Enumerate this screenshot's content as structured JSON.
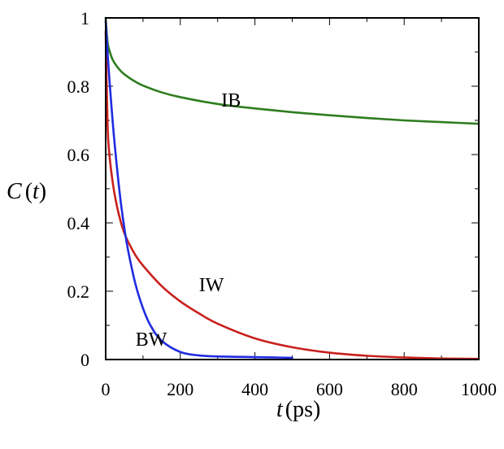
{
  "chart_data": {
    "type": "line",
    "title": "",
    "xlabel": {
      "var": "t",
      "unit": "(ps)"
    },
    "ylabel": {
      "func": "C",
      "paren_open": "(",
      "var": "t",
      "paren_close": ")"
    },
    "xlim": [
      0,
      1000
    ],
    "ylim": [
      0,
      1
    ],
    "xticks": [
      0,
      200,
      400,
      600,
      800,
      1000
    ],
    "yticks": [
      0,
      0.2,
      0.4,
      0.6,
      0.8,
      1
    ],
    "ytick_labels": [
      "0",
      "0.2",
      "0.4",
      "0.6",
      "0.8",
      "1"
    ],
    "grid": false,
    "series": [
      {
        "name": "IB",
        "color": "#2e7d1f",
        "x": [
          0,
          5,
          10,
          20,
          40,
          60,
          80,
          100,
          150,
          200,
          300,
          400,
          500,
          600,
          700,
          800,
          900,
          1000
        ],
        "y": [
          1.0,
          0.93,
          0.905,
          0.875,
          0.845,
          0.827,
          0.813,
          0.802,
          0.782,
          0.768,
          0.748,
          0.735,
          0.724,
          0.715,
          0.707,
          0.7,
          0.695,
          0.69
        ]
      },
      {
        "name": "IW",
        "color": "#c8201e",
        "x": [
          0,
          5,
          10,
          20,
          30,
          40,
          50,
          60,
          80,
          100,
          150,
          200,
          250,
          300,
          400,
          500,
          600,
          700,
          800,
          900,
          1000
        ],
        "y": [
          0.96,
          0.69,
          0.6,
          0.51,
          0.45,
          0.405,
          0.37,
          0.345,
          0.305,
          0.275,
          0.215,
          0.17,
          0.135,
          0.105,
          0.062,
          0.036,
          0.02,
          0.011,
          0.006,
          0.003,
          0.002
        ]
      },
      {
        "name": "BW",
        "color": "#1f2be0",
        "x": [
          0,
          5,
          10,
          20,
          30,
          40,
          50,
          60,
          80,
          100,
          120,
          150,
          200,
          250,
          300,
          350,
          400,
          450,
          500
        ],
        "y": [
          0.99,
          0.9,
          0.82,
          0.68,
          0.565,
          0.465,
          0.385,
          0.32,
          0.22,
          0.15,
          0.1,
          0.055,
          0.022,
          0.012,
          0.009,
          0.008,
          0.007,
          0.006,
          0.005
        ]
      }
    ],
    "labels": [
      {
        "text": "IB",
        "x": 310,
        "y": 0.74
      },
      {
        "text": "IW",
        "x": 250,
        "y": 0.2
      },
      {
        "text": "BW",
        "x": 80,
        "y": 0.04
      }
    ]
  }
}
